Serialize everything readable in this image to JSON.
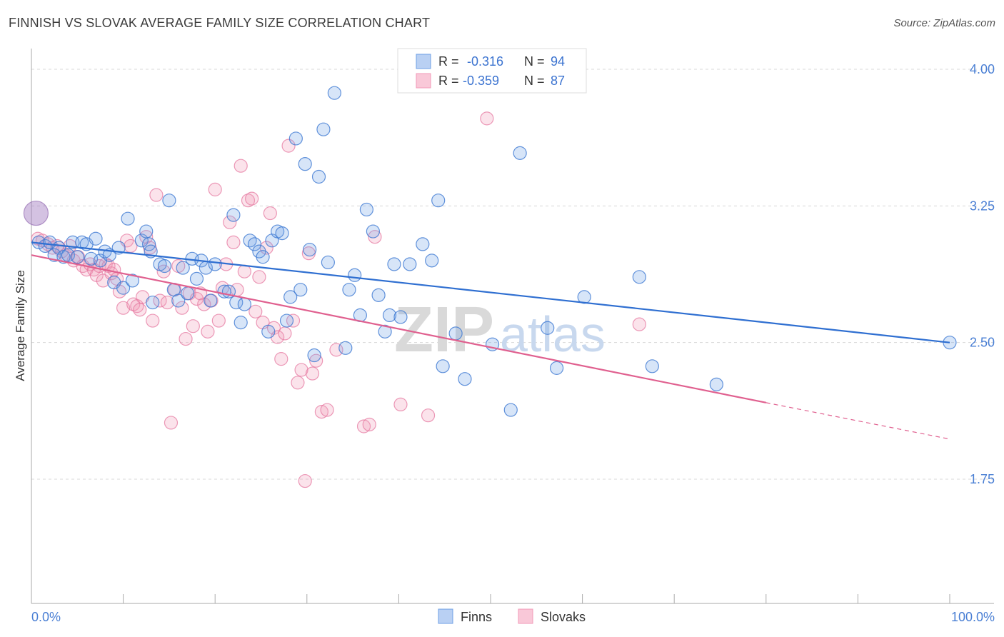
{
  "header": {
    "title": "FINNISH VS SLOVAK AVERAGE FAMILY SIZE CORRELATION CHART",
    "source": "Source: ZipAtlas.com"
  },
  "legend": {
    "r_label": "R =",
    "n_label": "N =",
    "finns_r": "-0.316",
    "finns_n": "94",
    "slovaks_r": "-0.359",
    "slovaks_n": "87"
  },
  "bottom_legend": {
    "finns": "Finns",
    "slovaks": "Slovaks"
  },
  "watermark": {
    "zip": "ZIP",
    "atlas": "atlas"
  },
  "colors": {
    "finns": "#6fa0e6",
    "finns_line": "#2f6fd1",
    "slovaks": "#f29ab8",
    "slovaks_line": "#e0608f"
  },
  "chart_data": {
    "type": "scatter",
    "title": "FINNISH VS SLOVAK AVERAGE FAMILY SIZE CORRELATION CHART",
    "xlabel": "",
    "ylabel": "Average Family Size",
    "xlim": [
      0,
      100
    ],
    "ylim": [
      1.0,
      4.2
    ],
    "x_tick_labels": [
      "0.0%",
      "100.0%"
    ],
    "y_ticks": [
      1.75,
      2.5,
      3.25,
      4.0
    ],
    "y_tick_labels": [
      "1.75",
      "2.50",
      "3.25",
      "4.00"
    ],
    "grid": true,
    "series": [
      {
        "name": "Finns",
        "trend": {
          "x": [
            0,
            100
          ],
          "y": [
            3.05,
            2.5
          ]
        },
        "points": [
          [
            0.5,
            3.21
          ],
          [
            0.8,
            3.05
          ],
          [
            1.5,
            3.03
          ],
          [
            2,
            3.05
          ],
          [
            2.5,
            2.98
          ],
          [
            3,
            3.02
          ],
          [
            3.5,
            2.97
          ],
          [
            4,
            2.98
          ],
          [
            4.5,
            3.05
          ],
          [
            5,
            2.97
          ],
          [
            5.5,
            3.05
          ],
          [
            6,
            3.04
          ],
          [
            6.5,
            2.96
          ],
          [
            7,
            3.07
          ],
          [
            7.5,
            2.95
          ],
          [
            8,
            3.0
          ],
          [
            8.5,
            2.98
          ],
          [
            9,
            2.83
          ],
          [
            9.5,
            3.02
          ],
          [
            10,
            2.8
          ],
          [
            10.5,
            3.18
          ],
          [
            11,
            2.84
          ],
          [
            12,
            3.06
          ],
          [
            12.5,
            3.11
          ],
          [
            12.8,
            3.04
          ],
          [
            13,
            3.0
          ],
          [
            13.2,
            2.72
          ],
          [
            14,
            2.93
          ],
          [
            14.5,
            2.92
          ],
          [
            15,
            3.28
          ],
          [
            15.5,
            2.79
          ],
          [
            16,
            2.73
          ],
          [
            16.5,
            2.91
          ],
          [
            17,
            2.77
          ],
          [
            17.5,
            2.96
          ],
          [
            18,
            2.85
          ],
          [
            18.5,
            2.95
          ],
          [
            19,
            2.91
          ],
          [
            19.5,
            2.73
          ],
          [
            20,
            2.93
          ],
          [
            21,
            2.78
          ],
          [
            21.5,
            2.78
          ],
          [
            22,
            3.2
          ],
          [
            22.3,
            2.72
          ],
          [
            22.8,
            2.61
          ],
          [
            23.2,
            2.71
          ],
          [
            23.8,
            3.06
          ],
          [
            24.3,
            3.04
          ],
          [
            24.8,
            3.0
          ],
          [
            25.2,
            2.97
          ],
          [
            25.8,
            2.56
          ],
          [
            26.2,
            3.06
          ],
          [
            26.8,
            3.11
          ],
          [
            27.3,
            3.1
          ],
          [
            27.8,
            2.62
          ],
          [
            28.2,
            2.75
          ],
          [
            28.8,
            3.62
          ],
          [
            29.3,
            2.79
          ],
          [
            29.8,
            3.48
          ],
          [
            30.3,
            3.01
          ],
          [
            30.8,
            2.43
          ],
          [
            31.3,
            3.41
          ],
          [
            31.8,
            3.67
          ],
          [
            32.3,
            2.94
          ],
          [
            33.0,
            3.87
          ],
          [
            34.2,
            2.47
          ],
          [
            34.6,
            2.79
          ],
          [
            35.2,
            2.87
          ],
          [
            35.8,
            2.65
          ],
          [
            36.5,
            3.23
          ],
          [
            37.2,
            3.11
          ],
          [
            37.8,
            2.76
          ],
          [
            38.5,
            2.56
          ],
          [
            39,
            2.65
          ],
          [
            39.5,
            2.93
          ],
          [
            40.2,
            2.64
          ],
          [
            41.2,
            2.93
          ],
          [
            42.6,
            3.04
          ],
          [
            43.6,
            2.95
          ],
          [
            44.3,
            3.28
          ],
          [
            44.8,
            2.37
          ],
          [
            46.2,
            2.55
          ],
          [
            47.2,
            2.3
          ],
          [
            48.2,
            3.97
          ],
          [
            50.2,
            2.49
          ],
          [
            52.2,
            2.13
          ],
          [
            53.2,
            3.54
          ],
          [
            56.2,
            2.58
          ],
          [
            57.2,
            2.36
          ],
          [
            60.2,
            2.75
          ],
          [
            66.2,
            2.86
          ],
          [
            67.6,
            2.37
          ],
          [
            74.6,
            2.27
          ],
          [
            100,
            2.5
          ]
        ]
      },
      {
        "name": "Slovaks",
        "trend": {
          "x": [
            0,
            80
          ],
          "y": [
            2.98,
            2.17
          ]
        },
        "trend_dashed": {
          "x": [
            80,
            100
          ],
          "y": [
            2.17,
            1.97
          ]
        },
        "points": [
          [
            0.7,
            3.07
          ],
          [
            1.2,
            3.06
          ],
          [
            1.8,
            3.04
          ],
          [
            2.3,
            3.02
          ],
          [
            2.8,
            3.03
          ],
          [
            3.3,
            3.0
          ],
          [
            3.7,
            2.98
          ],
          [
            4.2,
            3.03
          ],
          [
            4.6,
            2.95
          ],
          [
            5.1,
            2.97
          ],
          [
            5.6,
            2.92
          ],
          [
            6.0,
            2.9
          ],
          [
            6.4,
            2.93
          ],
          [
            6.8,
            2.9
          ],
          [
            7.1,
            2.87
          ],
          [
            7.4,
            2.92
          ],
          [
            7.8,
            2.84
          ],
          [
            8.1,
            2.93
          ],
          [
            8.4,
            2.92
          ],
          [
            8.7,
            2.88
          ],
          [
            9.0,
            2.9
          ],
          [
            9.3,
            2.85
          ],
          [
            9.6,
            2.78
          ],
          [
            10.0,
            2.69
          ],
          [
            10.4,
            3.06
          ],
          [
            10.8,
            3.03
          ],
          [
            11.1,
            2.71
          ],
          [
            11.5,
            2.7
          ],
          [
            11.8,
            2.68
          ],
          [
            12.1,
            2.75
          ],
          [
            12.5,
            3.08
          ],
          [
            12.9,
            3.02
          ],
          [
            13.2,
            2.62
          ],
          [
            13.6,
            3.31
          ],
          [
            14.0,
            2.73
          ],
          [
            14.4,
            2.89
          ],
          [
            14.8,
            2.72
          ],
          [
            15.2,
            2.06
          ],
          [
            15.6,
            2.79
          ],
          [
            16.0,
            2.92
          ],
          [
            16.4,
            2.69
          ],
          [
            16.8,
            2.52
          ],
          [
            17.2,
            2.77
          ],
          [
            17.6,
            2.59
          ],
          [
            18.0,
            2.74
          ],
          [
            18.4,
            2.77
          ],
          [
            18.8,
            2.71
          ],
          [
            19.2,
            2.56
          ],
          [
            19.6,
            2.73
          ],
          [
            20.0,
            3.34
          ],
          [
            20.4,
            2.62
          ],
          [
            20.8,
            2.8
          ],
          [
            21.2,
            2.93
          ],
          [
            21.6,
            3.16
          ],
          [
            22.0,
            3.05
          ],
          [
            22.4,
            2.79
          ],
          [
            22.8,
            3.47
          ],
          [
            23.2,
            2.89
          ],
          [
            23.6,
            3.28
          ],
          [
            24.0,
            3.29
          ],
          [
            24.4,
            2.67
          ],
          [
            24.8,
            2.86
          ],
          [
            25.2,
            2.61
          ],
          [
            25.6,
            3.02
          ],
          [
            26.0,
            3.21
          ],
          [
            26.4,
            2.58
          ],
          [
            26.8,
            2.53
          ],
          [
            27.2,
            2.41
          ],
          [
            27.6,
            2.55
          ],
          [
            28.0,
            3.58
          ],
          [
            28.5,
            2.62
          ],
          [
            29.0,
            2.28
          ],
          [
            29.4,
            2.35
          ],
          [
            29.8,
            1.74
          ],
          [
            30.2,
            2.99
          ],
          [
            30.6,
            2.33
          ],
          [
            31.0,
            2.4
          ],
          [
            31.6,
            2.12
          ],
          [
            32.2,
            2.13
          ],
          [
            33.2,
            2.46
          ],
          [
            36.2,
            2.04
          ],
          [
            36.8,
            2.05
          ],
          [
            37.4,
            3.08
          ],
          [
            40.2,
            2.16
          ],
          [
            43.2,
            2.1
          ],
          [
            49.6,
            3.73
          ],
          [
            66.2,
            2.6
          ]
        ]
      }
    ]
  }
}
